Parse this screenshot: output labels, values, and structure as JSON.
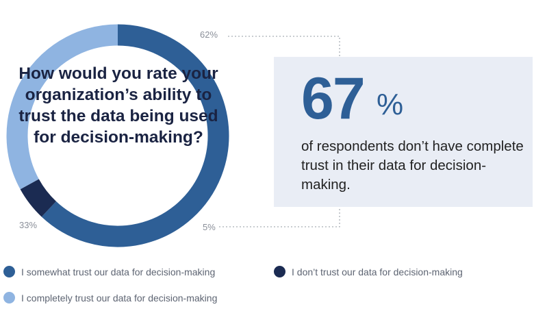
{
  "chart_data": {
    "type": "pie",
    "style": "donut",
    "title": "How would you rate your organization’s ability to trust the data being used for decision-making?",
    "categories": [
      "I somewhat trust our data for decision-making",
      "I don’t trust our data for decision-making",
      "I completely trust our data for decision-making"
    ],
    "values": [
      62,
      5,
      33
    ],
    "value_labels": [
      "62%",
      "5%",
      "33%"
    ],
    "colors": [
      "#2e5f96",
      "#1b2b52",
      "#8fb4e1"
    ],
    "legend_position": "bottom"
  },
  "callout": {
    "value": "67",
    "unit": "%",
    "text": "of respondents don’t have complete trust in their data for decision-making."
  },
  "colors": {
    "callout_background": "#e9edf5",
    "connector": "#a8adb5",
    "question_text": "#1a2342"
  }
}
